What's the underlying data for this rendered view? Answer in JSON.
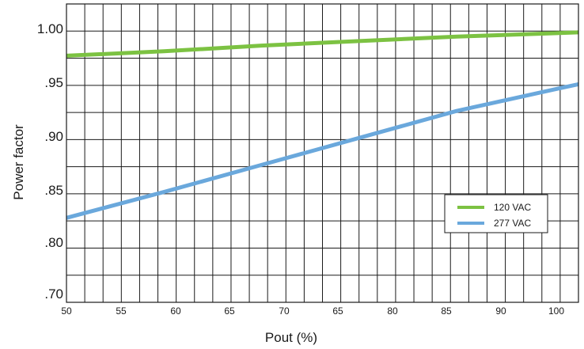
{
  "chart_data": {
    "type": "line",
    "title": "",
    "xlabel": "Pout (%)",
    "ylabel": "Power factor",
    "x_tick_labels": [
      "50",
      "55",
      "60",
      "65",
      "70",
      "65",
      "80",
      "85",
      "90",
      "100"
    ],
    "y_tick_labels": [
      ".70",
      ".80",
      ".85",
      ".90",
      ".95",
      "1.00"
    ],
    "grid": true,
    "legend_position": "right",
    "series": [
      {
        "name": "120 VAC",
        "color": "#7cc242",
        "points": [
          [
            50,
            0.979
          ],
          [
            60,
            0.983
          ],
          [
            70,
            0.988
          ],
          [
            80,
            0.992
          ],
          [
            90,
            0.996
          ],
          [
            100,
            0.999
          ]
        ]
      },
      {
        "name": "277 VAC",
        "color": "#6aa8dc",
        "points": [
          [
            50,
            0.835
          ],
          [
            60,
            0.858
          ],
          [
            70,
            0.882
          ],
          [
            80,
            0.906
          ],
          [
            90,
            0.93
          ],
          [
            100,
            0.949
          ]
        ]
      }
    ]
  }
}
